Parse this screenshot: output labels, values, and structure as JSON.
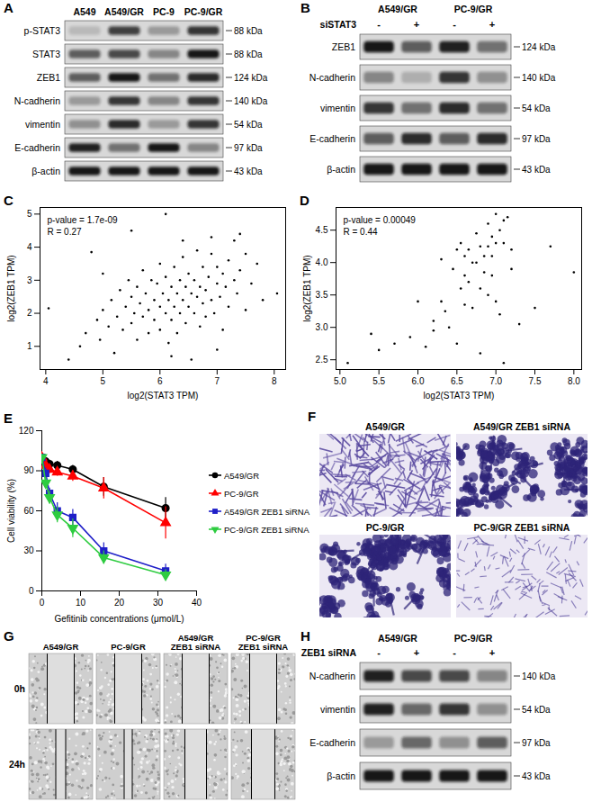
{
  "blots": [
    {
      "panel": "A",
      "lanes": [
        "A549",
        "A549/GR",
        "PC-9",
        "PC-9/GR"
      ],
      "rows": [
        {
          "name": "p-STAT3",
          "size": "88 kDa",
          "intensity": [
            0.15,
            0.75,
            0.3,
            0.8
          ]
        },
        {
          "name": "STAT3",
          "size": "88 kDa",
          "intensity": [
            0.6,
            0.7,
            0.4,
            0.95
          ]
        },
        {
          "name": "ZEB1",
          "size": "124 kDa",
          "intensity": [
            0.6,
            0.95,
            0.5,
            0.85
          ]
        },
        {
          "name": "N-cadherin",
          "size": "140 kDa",
          "intensity": [
            0.3,
            0.8,
            0.4,
            0.8
          ]
        },
        {
          "name": "vimentin",
          "size": "54 kDa",
          "intensity": [
            0.35,
            0.85,
            0.3,
            0.8
          ]
        },
        {
          "name": "E-cadherin",
          "size": "97 kDa",
          "intensity": [
            0.9,
            0.5,
            0.95,
            0.4
          ]
        },
        {
          "name": "β-actin",
          "size": "43 kDa",
          "intensity": [
            0.95,
            0.95,
            0.95,
            0.95
          ]
        }
      ]
    },
    {
      "panel": "B",
      "groups": [
        "A549/GR",
        "PC-9/GR"
      ],
      "treatment": "siSTAT3",
      "signs": [
        "-",
        "+",
        "-",
        "+"
      ],
      "rows": [
        {
          "name": "ZEB1",
          "size": "124 kDa",
          "intensity": [
            0.95,
            0.6,
            0.9,
            0.5
          ]
        },
        {
          "name": "N-cadherin",
          "size": "140 kDa",
          "intensity": [
            0.4,
            0.2,
            0.8,
            0.35
          ]
        },
        {
          "name": "vimentin",
          "size": "54 kDa",
          "intensity": [
            0.8,
            0.5,
            0.85,
            0.5
          ]
        },
        {
          "name": "E-cadherin",
          "size": "97 kDa",
          "intensity": [
            0.6,
            0.85,
            0.6,
            0.85
          ]
        },
        {
          "name": "β-actin",
          "size": "43 kDa",
          "intensity": [
            0.95,
            0.95,
            0.95,
            0.95
          ]
        }
      ]
    },
    {
      "panel": "H",
      "groups": [
        "A549/GR",
        "PC-9/GR"
      ],
      "treatment": "ZEB1 siRNA",
      "signs": [
        "-",
        "+",
        "-",
        "+"
      ],
      "rows": [
        {
          "name": "N-cadherin",
          "size": "140 kDa",
          "intensity": [
            0.9,
            0.7,
            0.7,
            0.4
          ]
        },
        {
          "name": "vimentin",
          "size": "54 kDa",
          "intensity": [
            0.9,
            0.55,
            0.8,
            0.35
          ]
        },
        {
          "name": "E-cadherin",
          "size": "97 kDa",
          "intensity": [
            0.3,
            0.55,
            0.35,
            0.6
          ]
        },
        {
          "name": "β-actin",
          "size": "43 kDa",
          "intensity": [
            0.95,
            0.95,
            0.95,
            0.95
          ]
        }
      ]
    }
  ],
  "chart_data": [
    {
      "type": "scatter",
      "panel": "C",
      "color": "#000000",
      "x_label": "log2(STAT3 TPM)",
      "y_label": "log2(ZEB1 TPM)",
      "annotations": [
        "p-value = 1.7e-09",
        "R = 0.27"
      ],
      "xlim": [
        3.9,
        8.2
      ],
      "xticks": [
        4,
        5,
        6,
        7,
        8
      ],
      "ylim": [
        0.3,
        5.2
      ],
      "yticks": [
        1,
        2,
        3,
        4,
        5
      ],
      "x": [
        4.05,
        4.6,
        4.7,
        4.8,
        4.9,
        4.95,
        5.0,
        5.1,
        5.15,
        5.2,
        5.25,
        5.3,
        5.35,
        5.4,
        5.45,
        5.5,
        5.5,
        5.55,
        5.6,
        5.6,
        5.65,
        5.7,
        5.7,
        5.75,
        5.8,
        5.8,
        5.85,
        5.9,
        5.9,
        5.95,
        6.0,
        6.0,
        6.0,
        6.05,
        6.1,
        6.1,
        6.15,
        6.15,
        6.2,
        6.2,
        6.25,
        6.25,
        6.3,
        6.3,
        6.35,
        6.35,
        6.4,
        6.4,
        6.45,
        6.45,
        6.5,
        6.5,
        6.55,
        6.55,
        6.6,
        6.6,
        6.65,
        6.65,
        6.7,
        6.7,
        6.75,
        6.75,
        6.8,
        6.8,
        6.85,
        6.9,
        6.9,
        6.95,
        7.0,
        7.0,
        7.05,
        7.1,
        7.1,
        7.15,
        7.2,
        7.2,
        7.3,
        7.3,
        7.35,
        7.4,
        7.5,
        7.5,
        7.6,
        7.7,
        7.8,
        8.05,
        5.5,
        6.1,
        6.9,
        7.4,
        4.4,
        6.2,
        5.0,
        6.4,
        7.0
      ],
      "values": [
        2.15,
        1.0,
        1.4,
        3.85,
        1.8,
        1.2,
        2.1,
        1.6,
        2.4,
        0.8,
        1.9,
        2.7,
        1.5,
        2.2,
        3.0,
        1.7,
        2.5,
        2.0,
        1.2,
        2.8,
        2.3,
        3.3,
        1.9,
        2.6,
        1.4,
        2.1,
        3.0,
        2.4,
        1.8,
        2.9,
        2.2,
        3.5,
        1.5,
        2.6,
        2.0,
        3.1,
        2.4,
        1.1,
        2.8,
        1.8,
        3.4,
        2.2,
        2.6,
        1.4,
        3.0,
        2.0,
        2.4,
        3.7,
        2.8,
        1.7,
        2.2,
        3.2,
        2.6,
        0.6,
        3.0,
        2.0,
        2.5,
        3.9,
        2.8,
        1.6,
        2.3,
        3.4,
        2.7,
        1.9,
        3.1,
        2.4,
        3.8,
        2.0,
        2.9,
        3.4,
        2.5,
        3.2,
        1.5,
        2.8,
        3.6,
        2.2,
        3.0,
        4.2,
        2.6,
        3.3,
        2.1,
        3.8,
        2.9,
        3.5,
        2.4,
        2.6,
        4.5,
        5.0,
        4.3,
        4.4,
        0.6,
        0.7,
        3.2,
        4.2,
        0.9
      ]
    },
    {
      "type": "scatter",
      "panel": "D",
      "color": "#000000",
      "x_label": "log2(STAT3 TPM)",
      "y_label": "log2(ZEB1 TPM)",
      "annotations": [
        "p-value = 0.00049",
        "R = 0.44"
      ],
      "xlim": [
        4.95,
        8.1
      ],
      "xticks": [
        {
          "value": 5,
          "label": "5.0"
        },
        5.5,
        {
          "value": 6,
          "label": "6.0"
        },
        6.5,
        {
          "value": 7,
          "label": "7.0"
        },
        7.5,
        {
          "value": 8,
          "label": "8.0"
        }
      ],
      "ylim": [
        2.35,
        4.85
      ],
      "yticks": [
        2.5,
        {
          "value": 3,
          "label": "3.0"
        },
        3.5,
        {
          "value": 4,
          "label": "4.0"
        },
        4.5
      ],
      "x": [
        5.1,
        5.4,
        5.5,
        5.7,
        5.9,
        6.0,
        6.1,
        6.2,
        6.2,
        6.3,
        6.3,
        6.35,
        6.4,
        6.45,
        6.5,
        6.5,
        6.55,
        6.55,
        6.6,
        6.6,
        6.65,
        6.65,
        6.7,
        6.7,
        6.75,
        6.75,
        6.8,
        6.8,
        6.85,
        6.85,
        6.9,
        6.9,
        6.9,
        6.95,
        6.95,
        7.0,
        7.0,
        7.0,
        7.05,
        7.05,
        7.1,
        7.1,
        7.1,
        7.15,
        7.2,
        7.2,
        7.3,
        7.5,
        7.7,
        8.0,
        6.8,
        6.95,
        6.6
      ],
      "values": [
        2.45,
        2.9,
        2.65,
        2.75,
        2.85,
        3.4,
        2.7,
        3.1,
        2.95,
        3.4,
        4.05,
        3.25,
        3.0,
        3.9,
        2.75,
        4.2,
        3.6,
        4.3,
        3.8,
        4.1,
        3.7,
        4.2,
        4.0,
        3.3,
        4.45,
        4.0,
        3.6,
        4.25,
        4.1,
        3.85,
        3.5,
        4.25,
        4.6,
        4.1,
        4.4,
        4.3,
        3.4,
        4.75,
        4.5,
        3.2,
        4.3,
        4.65,
        2.45,
        4.7,
        3.9,
        4.2,
        3.05,
        3.3,
        4.25,
        3.85,
        2.6,
        3.8,
        3.35
      ]
    },
    {
      "type": "line",
      "panel": "E",
      "x_label": "Gefitinib concentrations (μmol/L)",
      "y_label": "Cell viability (%)",
      "xlim": [
        0,
        40
      ],
      "xticks": [
        0,
        10,
        20,
        30,
        40
      ],
      "ylim": [
        0,
        120
      ],
      "yticks": [
        0,
        30,
        60,
        90,
        120
      ],
      "legend": "right",
      "x": [
        0,
        1,
        2,
        4,
        8,
        16,
        32
      ],
      "series": [
        {
          "name": "A549/GR",
          "color": "#000000",
          "marker": "circle",
          "values": [
            100,
            97,
            95,
            94,
            91,
            78,
            62
          ],
          "errors": [
            2,
            3,
            3,
            3,
            3,
            7,
            8
          ]
        },
        {
          "name": "PC-9/GR",
          "color": "#ff0000",
          "marker": "triangle",
          "values": [
            100,
            94,
            91,
            89,
            86,
            77,
            51
          ],
          "errors": [
            2,
            3,
            3,
            3,
            4,
            8,
            12
          ]
        },
        {
          "name": "A549/GR ZEB1 siRNA",
          "color": "#1f1fc8",
          "marker": "square",
          "values": [
            100,
            88,
            73,
            60,
            55,
            30,
            15
          ],
          "errors": [
            2,
            4,
            4,
            6,
            6,
            6,
            5
          ]
        },
        {
          "name": "PC-9/GR ZEB1 siRNA",
          "color": "#2ecc40",
          "marker": "triangle-down",
          "values": [
            100,
            81,
            70,
            57,
            47,
            25,
            12
          ],
          "errors": [
            2,
            4,
            5,
            6,
            7,
            5,
            4
          ]
        }
      ]
    }
  ],
  "images": [
    {
      "panel": "F",
      "type": "transwell",
      "labels": [
        "A549/GR",
        "A549/GR ZEB1 siRNA",
        "PC-9/GR",
        "PC-9/GR ZEB1 siRNA"
      ]
    },
    {
      "panel": "G",
      "type": "wound healing",
      "columns": [
        "A549/GR",
        "PC-9/GR",
        "A549/GR ZEB1 siRNA",
        "PC-9/GR ZEB1 siRNA"
      ],
      "rows": [
        "0h",
        "24h"
      ]
    }
  ]
}
